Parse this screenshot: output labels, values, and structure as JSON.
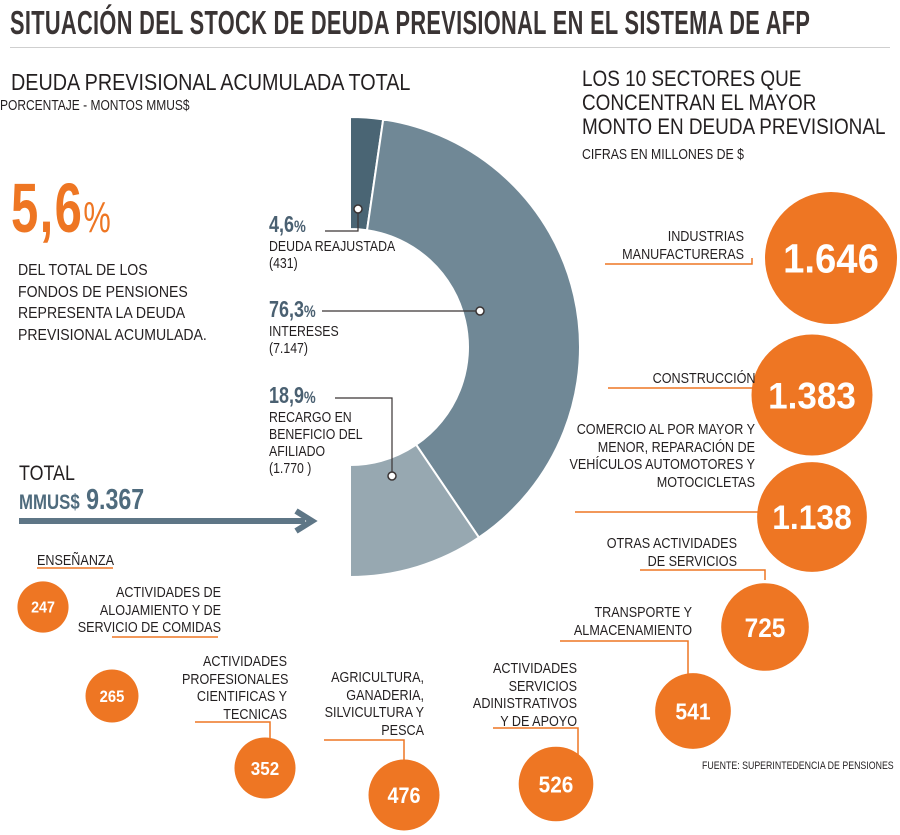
{
  "title": "SITUACIÓN DEL STOCK DE DEUDA PREVISIONAL EN EL SISTEMA DE AFP",
  "left_panel": {
    "title": "DEUDA PREVISIONAL ACUMULADA TOTAL",
    "subtitle": "PORCENTAJE - MONTOS MMUS$",
    "share_value": "5,6",
    "share_sign": "%",
    "share_description": "DEL TOTAL DE LOS FONDOS DE PENSIONES REPRESENTA LA DEUDA PREVISIONAL ACUMULADA.",
    "total_label": "TOTAL",
    "total_unit": "MMUS$",
    "total_value": "9.367"
  },
  "right_panel": {
    "title": "LOS 10 SECTORES QUE CONCENTRAN EL MAYOR MONTO EN DEUDA PREVISIONAL",
    "subtitle": "CIFRAS EN MILLONES DE $"
  },
  "source": "FUENTE: SUPERINTEDENCIA DE PENSIONES",
  "colors": {
    "orange": "#ee7623",
    "slate_dark": "#4a6574",
    "slate_mid": "#708896",
    "slate_light": "#97a8b1",
    "arrow": "#5e7686"
  },
  "chart_data": [
    {
      "type": "pie",
      "title": "DEUDA PREVISIONAL ACUMULADA TOTAL",
      "subtitle": "PORCENTAJE - MONTOS MMUS$",
      "slices": [
        {
          "label": "DEUDA REAJUSTADA",
          "percent": 4.6,
          "percent_text": "4,6",
          "amount": 431,
          "amount_text": "(431)",
          "color": "#4a6574"
        },
        {
          "label": "INTERESES",
          "percent": 76.3,
          "percent_text": "76,3",
          "amount": 7147,
          "amount_text": "(7.147)",
          "color": "#708896"
        },
        {
          "label": "RECARGO EN BENEFICIO DEL AFILIADO",
          "percent": 18.9,
          "percent_text": "18,9",
          "amount": 1770,
          "amount_text": "(1.770 )",
          "color": "#97a8b1"
        }
      ],
      "total": 9367
    },
    {
      "type": "bubble",
      "title": "LOS 10 SECTORES QUE CONCENTRAN EL MAYOR MONTO EN DEUDA PREVISIONAL",
      "subtitle": "CIFRAS EN MILLONES DE $",
      "sectors": [
        {
          "label": "INDUSTRIAS MANUFACTURERAS",
          "value": 1646,
          "value_text": "1.646"
        },
        {
          "label": "CONSTRUCCIÓN",
          "value": 1383,
          "value_text": "1.383"
        },
        {
          "label": "COMERCIO AL POR MAYOR Y MENOR, REPARACIÓN DE VEHÍCULOS AUTOMOTORES Y MOTOCICLETAS",
          "value": 1138,
          "value_text": "1.138"
        },
        {
          "label": "OTRAS ACTIVIDADES DE SERVICIOS",
          "value": 725,
          "value_text": "725"
        },
        {
          "label": "TRANSPORTE Y ALMACENAMIENTO",
          "value": 541,
          "value_text": "541"
        },
        {
          "label": "ACTIVIDADES SERVICIOS ADINISTRATIVOS Y DE APOYO",
          "value": 526,
          "value_text": "526"
        },
        {
          "label": "AGRICULTURA, GANADERIA, SILVICULTURA Y PESCA",
          "value": 476,
          "value_text": "476"
        },
        {
          "label": "ACTIVIDADES PROFESIONALES CIENTIFICAS Y TECNICAS",
          "value": 352,
          "value_text": "352"
        },
        {
          "label": "ACTIVIDADES DE ALOJAMIENTO Y DE SERVICIO DE COMIDAS",
          "value": 265,
          "value_text": "265"
        },
        {
          "label": "ENSEÑANZA",
          "value": 247,
          "value_text": "247"
        }
      ]
    }
  ]
}
